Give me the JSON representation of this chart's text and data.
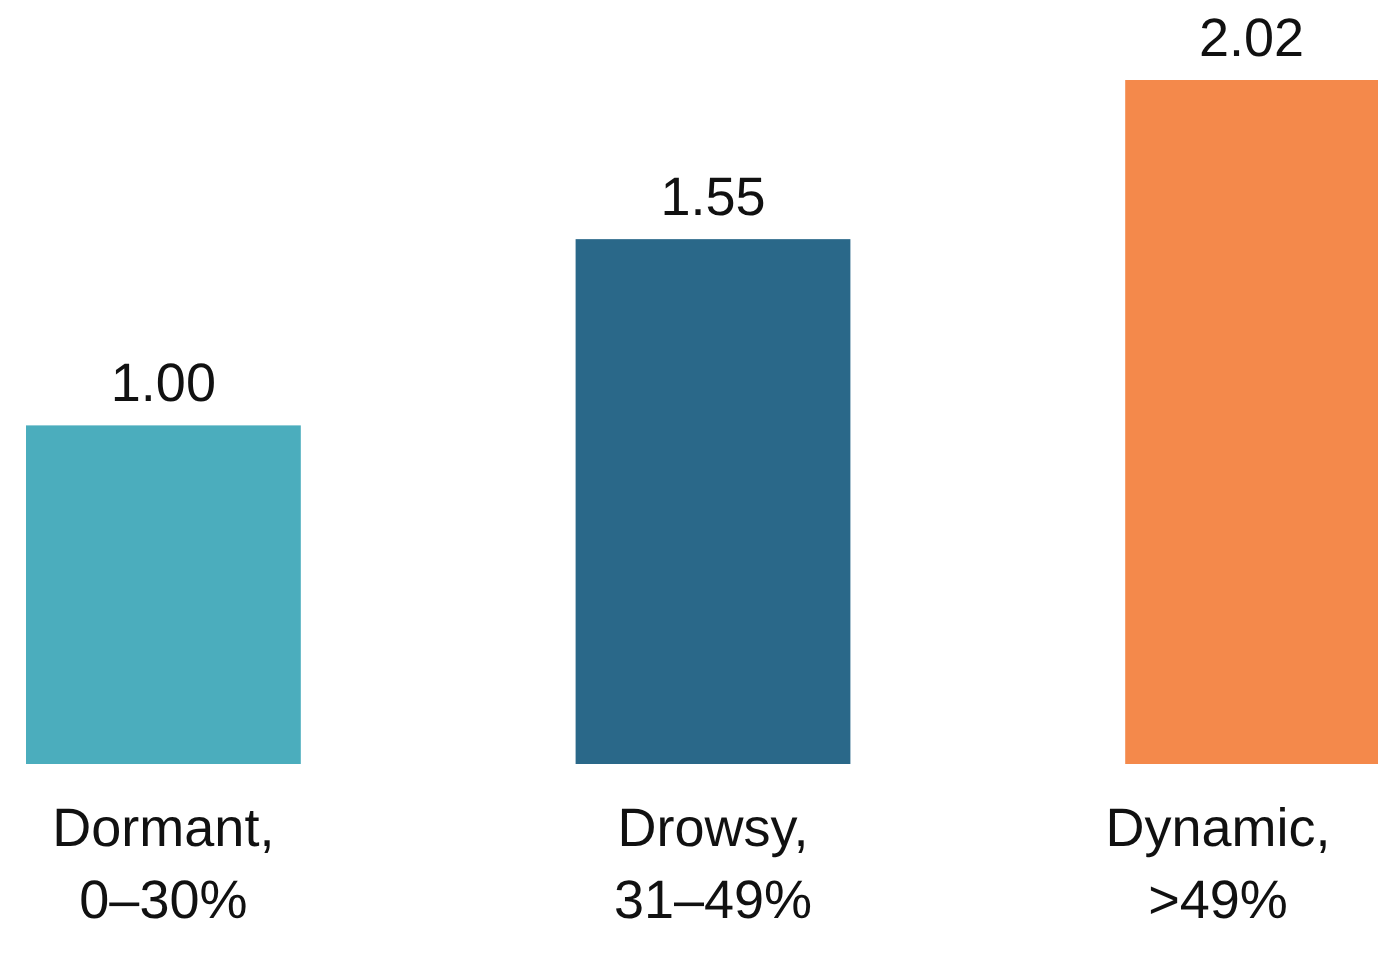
{
  "chart_data": {
    "type": "bar",
    "categories": [
      "Dormant, 0–30%",
      "Drowsy, 31–49%",
      "Dynamic, >49%"
    ],
    "values": [
      1.0,
      1.55,
      2.02
    ],
    "colors": [
      "#4badbd",
      "#2a6889",
      "#f4894b"
    ],
    "value_labels": [
      "1.00",
      "1.55",
      "2.02"
    ]
  }
}
